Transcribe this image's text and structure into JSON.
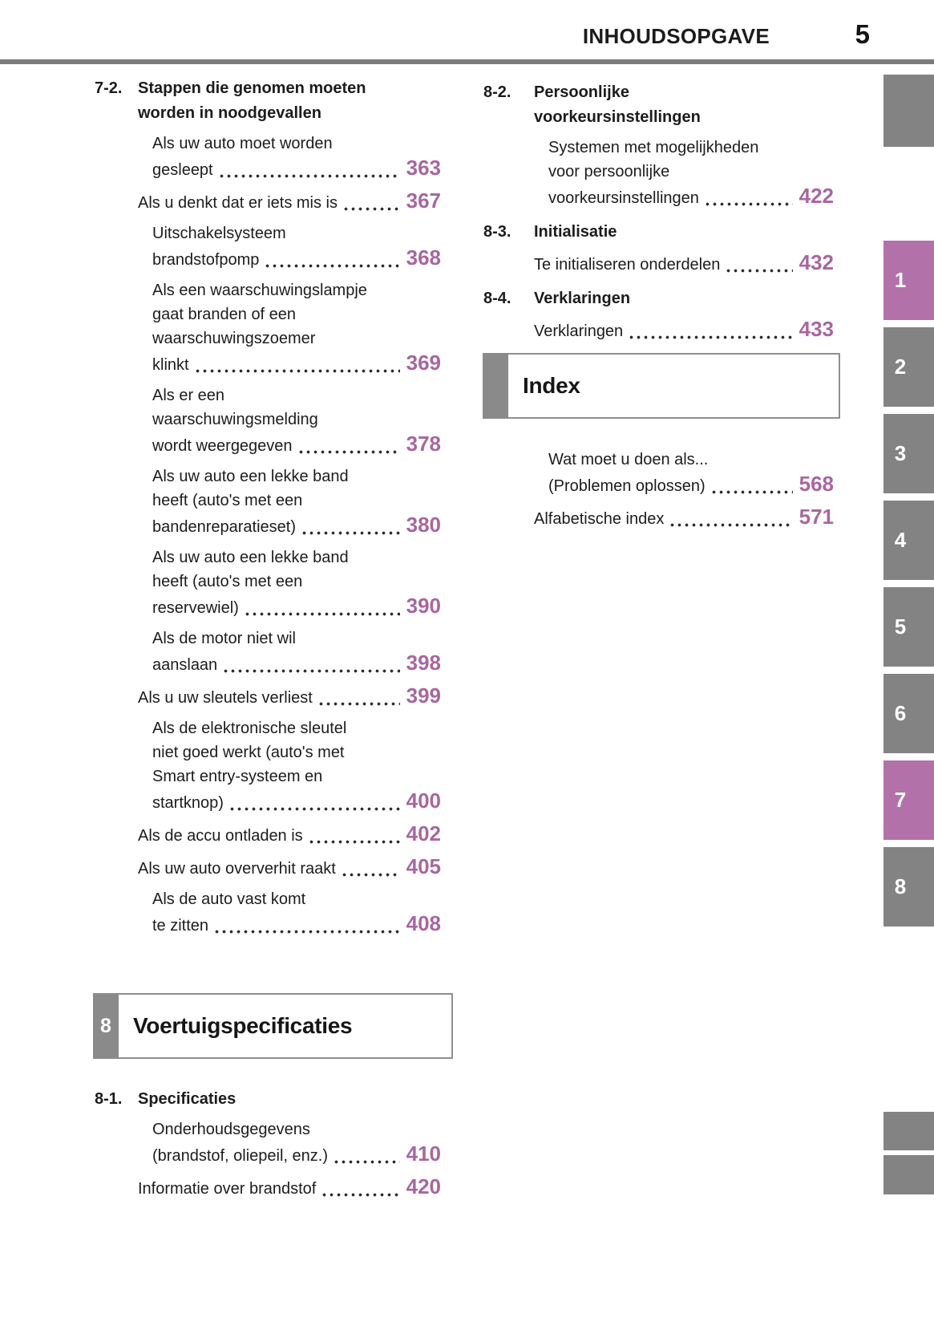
{
  "header": {
    "title": "INHOUDSOPGAVE",
    "page_number": "5"
  },
  "colors": {
    "accent_purple": "#a8679f",
    "tab_purple": "#b272a9",
    "tab_gray": "#838383",
    "rule_gray": "#7b7b7b"
  },
  "left_column": {
    "sections": [
      {
        "number": "7-2.",
        "title_lines": [
          "Stappen die genomen moeten",
          "worden in noodgevallen"
        ],
        "entries": [
          {
            "lines_before": [
              "Als uw auto moet worden"
            ],
            "last_line": "gesleept",
            "page": "363"
          },
          {
            "lines_before": [],
            "last_line": "Als u denkt dat er iets mis is",
            "page": "367"
          },
          {
            "lines_before": [
              "Uitschakelsysteem"
            ],
            "last_line": "brandstofpomp",
            "page": "368"
          },
          {
            "lines_before": [
              "Als een waarschuwingslampje",
              "gaat branden of een",
              "waarschuwingszoemer"
            ],
            "last_line": "klinkt",
            "page": "369"
          },
          {
            "lines_before": [
              "Als er een",
              "waarschuwingsmelding"
            ],
            "last_line": "wordt weergegeven",
            "page": "378"
          },
          {
            "lines_before": [
              "Als uw auto een lekke band",
              "heeft (auto's met een"
            ],
            "last_line": "bandenreparatieset)",
            "page": "380"
          },
          {
            "lines_before": [
              "Als uw auto een lekke band",
              "heeft (auto's met een"
            ],
            "last_line": "reservewiel)",
            "page": "390"
          },
          {
            "lines_before": [
              "Als de motor niet wil"
            ],
            "last_line": "aanslaan",
            "page": "398"
          },
          {
            "lines_before": [],
            "last_line": "Als u uw sleutels verliest",
            "page": "399"
          },
          {
            "lines_before": [
              "Als de elektronische sleutel",
              "niet goed werkt (auto's met",
              "Smart entry-systeem en"
            ],
            "last_line": "startknop)",
            "page": "400"
          },
          {
            "lines_before": [],
            "last_line": "Als de accu ontladen is",
            "page": "402"
          },
          {
            "lines_before": [],
            "last_line": "Als uw auto oververhit raakt",
            "page": "405"
          },
          {
            "lines_before": [
              "Als de auto vast komt"
            ],
            "last_line": "te zitten",
            "page": "408"
          }
        ]
      }
    ],
    "chapter_box": {
      "tab_number": "8",
      "title": "Voertuigspecificaties"
    },
    "sections_after_box": [
      {
        "number": "8-1.",
        "title_lines": [
          "Specificaties"
        ],
        "entries": [
          {
            "lines_before": [
              "Onderhoudsgegevens"
            ],
            "last_line": "(brandstof, oliepeil, enz.)",
            "page": "410"
          },
          {
            "lines_before": [],
            "last_line": "Informatie over brandstof",
            "page": "420"
          }
        ]
      }
    ]
  },
  "right_column": {
    "sections": [
      {
        "number": "8-2.",
        "title_lines": [
          "Persoonlijke",
          "voorkeursinstellingen"
        ],
        "entries": [
          {
            "lines_before": [
              "Systemen met mogelijkheden",
              "voor persoonlijke"
            ],
            "last_line": "voorkeursinstellingen",
            "page": "422"
          }
        ]
      },
      {
        "number": "8-3.",
        "title_lines": [
          "Initialisatie"
        ],
        "entries": [
          {
            "lines_before": [],
            "last_line": "Te initialiseren onderdelen",
            "page": "432"
          }
        ]
      },
      {
        "number": "8-4.",
        "title_lines": [
          "Verklaringen"
        ],
        "entries": [
          {
            "lines_before": [],
            "last_line": "Verklaringen",
            "page": "433"
          }
        ]
      }
    ],
    "index_box": {
      "title": "Index"
    },
    "index_entries": [
      {
        "lines_before": [
          "Wat moet u doen als..."
        ],
        "last_line": "(Problemen oplossen)",
        "page": "568"
      },
      {
        "lines_before": [],
        "last_line": "Alfabetische index",
        "page": "571"
      }
    ]
  },
  "side_tabs": [
    {
      "label": "1",
      "active": true
    },
    {
      "label": "2",
      "active": false
    },
    {
      "label": "3",
      "active": false
    },
    {
      "label": "4",
      "active": false
    },
    {
      "label": "5",
      "active": false
    },
    {
      "label": "6",
      "active": false
    },
    {
      "label": "7",
      "active": true
    },
    {
      "label": "8",
      "active": false
    }
  ]
}
